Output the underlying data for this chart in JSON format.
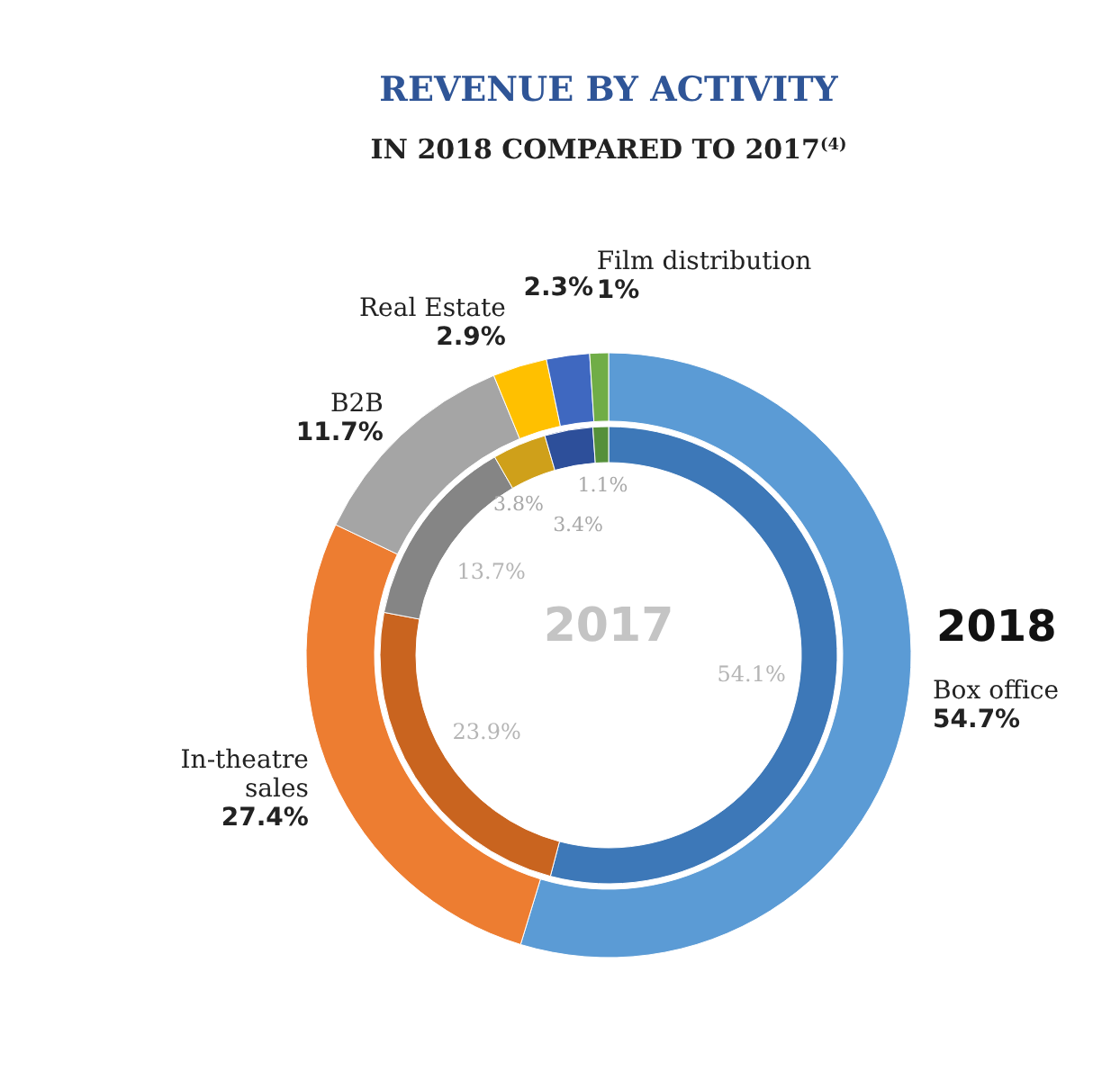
{
  "chart_data": {
    "type": "donut",
    "title": "REVENUE BY ACTIVITY",
    "subtitle": "IN 2018 COMPARED TO 2017$^{(4)}$",
    "categories": [
      "Box office",
      "In-theatre sales",
      "B2B",
      "Real Estate",
      null,
      "Film distribution"
    ],
    "series": [
      {
        "name": "2018",
        "colors": [
          "#5b9bd5",
          "#ed7d31",
          "#a5a5a5",
          "#ffc000",
          "#3f68c0",
          "#70ad47"
        ],
        "values": [
          54.7,
          27.4,
          11.7,
          2.9,
          2.3,
          1
        ],
        "value_labels": [
          "54.7%",
          "27.4%",
          "11.7%",
          "2.9%",
          "2.3%",
          "1%"
        ]
      },
      {
        "name": "2017",
        "colors": [
          "#3d78b8",
          "#c9641f",
          "#858585",
          "#cfa01a",
          "#2d4f9a",
          "#55903a"
        ],
        "values": [
          54.1,
          23.9,
          13.7,
          3.8,
          3.4,
          1.1
        ],
        "value_labels": [
          "54.1%",
          "23.9%",
          "13.7%",
          "3.8%",
          "3.4%",
          "1.1%"
        ]
      }
    ]
  }
}
